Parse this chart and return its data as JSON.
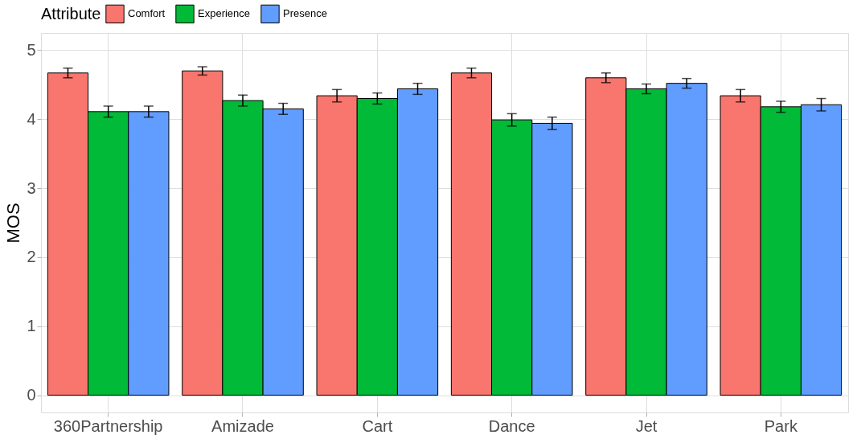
{
  "chart_data": {
    "type": "bar",
    "ylabel": "MOS",
    "legend_title": "Attribute",
    "categories": [
      "360Partnership",
      "Amizade",
      "Cart",
      "Dance",
      "Jet",
      "Park"
    ],
    "series": [
      {
        "name": "Comfort",
        "color": "#f8766d",
        "values": [
          4.67,
          4.7,
          4.34,
          4.67,
          4.6,
          4.34
        ],
        "errors": [
          0.07,
          0.06,
          0.09,
          0.07,
          0.07,
          0.09
        ]
      },
      {
        "name": "Experience",
        "color": "#00ba38",
        "values": [
          4.11,
          4.27,
          4.3,
          3.99,
          4.44,
          4.18
        ],
        "errors": [
          0.08,
          0.08,
          0.08,
          0.09,
          0.07,
          0.08
        ]
      },
      {
        "name": "Presence",
        "color": "#619cff",
        "values": [
          4.11,
          4.15,
          4.44,
          3.94,
          4.52,
          4.21
        ],
        "errors": [
          0.08,
          0.08,
          0.08,
          0.09,
          0.07,
          0.09
        ]
      }
    ],
    "ylim": [
      -0.25,
      5.25
    ],
    "yticks": [
      0,
      1,
      2,
      3,
      4,
      5
    ],
    "grid": true,
    "legend": "top"
  }
}
